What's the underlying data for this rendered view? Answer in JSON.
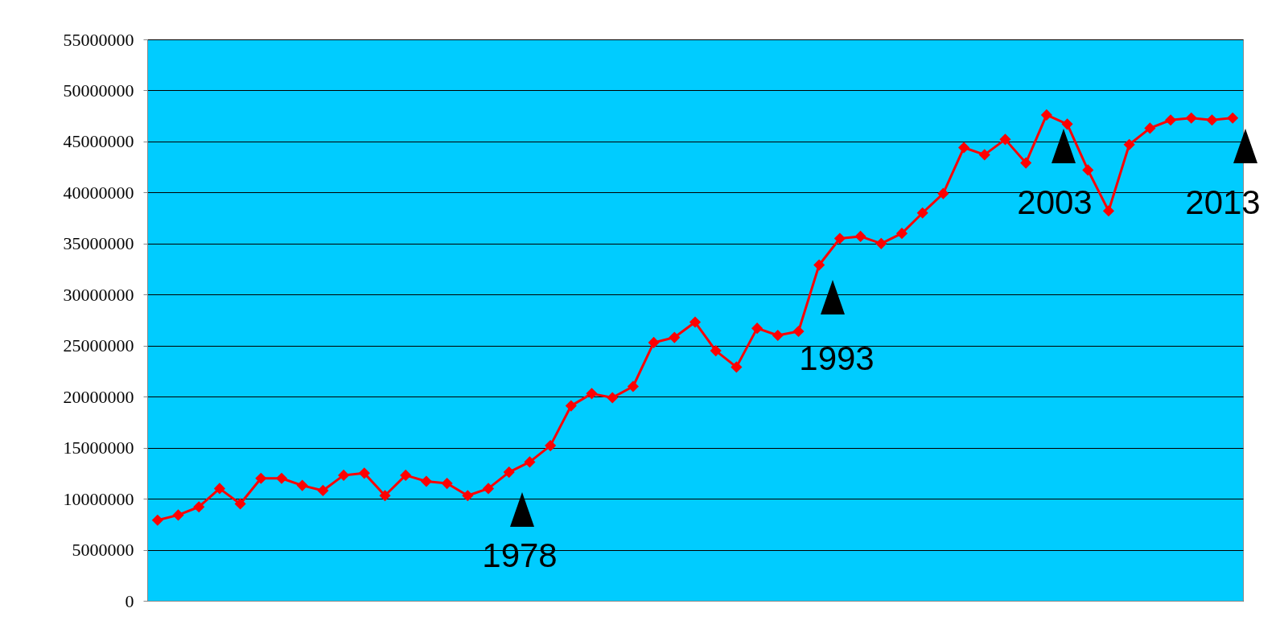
{
  "chart_data": {
    "type": "line",
    "categories": [
      null,
      null,
      null,
      null,
      null,
      null,
      null,
      null,
      null,
      null,
      null,
      null,
      null,
      null,
      null,
      null,
      null,
      null,
      null,
      null,
      null,
      null,
      null,
      null,
      null,
      null,
      null,
      null,
      null,
      null,
      null,
      null,
      null,
      null,
      null,
      null,
      null,
      null,
      null,
      null,
      null,
      null,
      null,
      null,
      null,
      null,
      null,
      null,
      null,
      null,
      null,
      null,
      null
    ],
    "series": [
      {
        "color": "#ff0000",
        "values": [
          7900000,
          8400000,
          9200000,
          11000000,
          9500000,
          12000000,
          12000000,
          11300000,
          10800000,
          12300000,
          12500000,
          10300000,
          12300000,
          11700000,
          11500000,
          10300000,
          11000000,
          12600000,
          13600000,
          15200000,
          19100000,
          20300000,
          19900000,
          21000000,
          25300000,
          25800000,
          27300000,
          24500000,
          22900000,
          26700000,
          26000000,
          26400000,
          32900000,
          35500000,
          35700000,
          35000000,
          36000000,
          38000000,
          39900000,
          44400000,
          43700000,
          45200000,
          42900000,
          47600000,
          46700000,
          42200000,
          38200000,
          44700000,
          46300000,
          47100000,
          47300000,
          47100000,
          47300000
        ]
      }
    ],
    "ylim": [
      0,
      55000000
    ],
    "yticks": [
      0,
      5000000,
      10000000,
      15000000,
      20000000,
      25000000,
      30000000,
      35000000,
      40000000,
      45000000,
      50000000,
      55000000
    ],
    "annotations": [
      "1978",
      "1993",
      "2003",
      "2013"
    ],
    "grid": "y",
    "tick_labels": "y",
    "marker": "diamond",
    "line_style": "solid"
  }
}
